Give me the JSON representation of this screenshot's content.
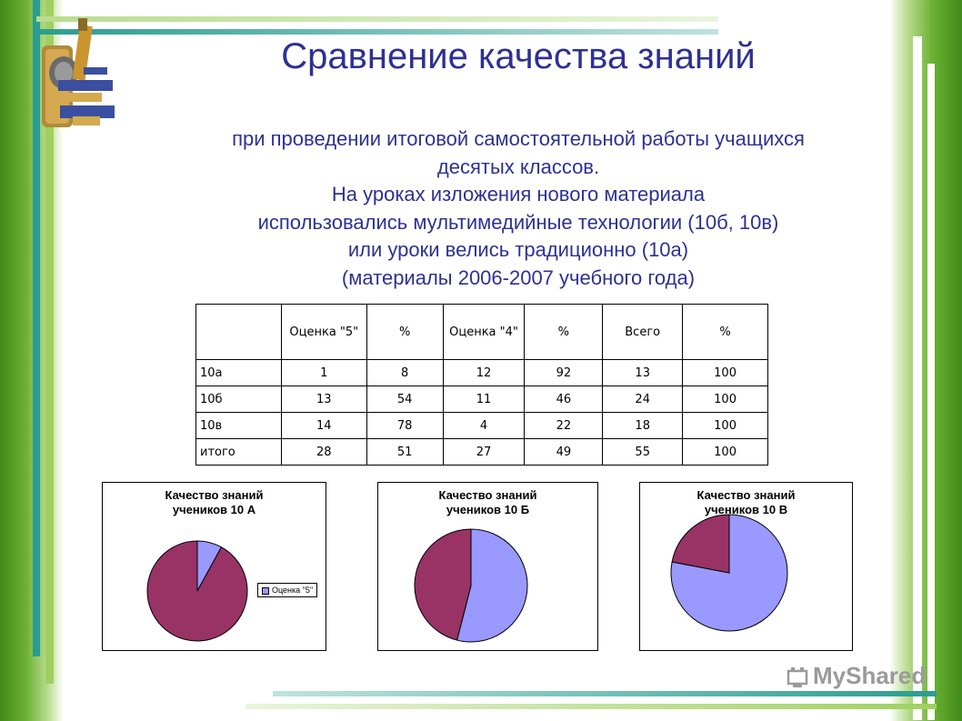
{
  "title": "Сравнение качества знаний",
  "subtitle_lines": [
    "при проведении итоговой самостоятельной работы учащихся",
    "десятых классов.",
    "На уроках изложения нового материала",
    "использовались мультимедийные технологии (10б, 10в)",
    "или уроки велись традиционно (10а)",
    "(материалы 2006-2007 учебного года)"
  ],
  "table": {
    "headers": [
      "",
      "Оценка \"5\"",
      "%",
      "Оценка \"4\"",
      "%",
      "Всего",
      "%"
    ],
    "rows": [
      [
        "10а",
        "1",
        "8",
        "12",
        "92",
        "13",
        "100"
      ],
      [
        "10б",
        "13",
        "54",
        "11",
        "46",
        "24",
        "100"
      ],
      [
        "10в",
        "14",
        "78",
        "4",
        "22",
        "18",
        "100"
      ],
      [
        "итого",
        "28",
        "51",
        "27",
        "49",
        "55",
        "100"
      ]
    ]
  },
  "chart_data": [
    {
      "type": "pie",
      "title": "Качество знаний учеников 10 А",
      "title_lines": [
        "Качество знаний",
        "учеников 10 А"
      ],
      "series": [
        {
          "name": "Оценка \"5\"",
          "value": 8,
          "color": "#9999ff"
        },
        {
          "value": 92,
          "color": "#993366"
        }
      ],
      "legend": {
        "visible": true,
        "placement": "right",
        "entries": [
          "Оценка \"5\""
        ]
      }
    },
    {
      "type": "pie",
      "title": "Качество знаний учеников 10 Б",
      "title_lines": [
        "Качество знаний",
        "учеников 10 Б"
      ],
      "series": [
        {
          "value": 54,
          "color": "#9999ff"
        },
        {
          "value": 46,
          "color": "#993366"
        }
      ],
      "legend": {
        "visible": false
      }
    },
    {
      "type": "pie",
      "title": "Качество знаний учеников 10 В",
      "title_lines": [
        "Качество знаний",
        "учеников 10 В"
      ],
      "series": [
        {
          "value": 78,
          "color": "#9999ff"
        },
        {
          "value": 22,
          "color": "#993366"
        }
      ],
      "legend": {
        "visible": false
      }
    }
  ],
  "watermark": "MyShared",
  "colors": {
    "title_text": "#2e3192",
    "green_dark": "#3f8a1a",
    "green_light": "#9fd060",
    "teal_bar": "#2a9d8f"
  },
  "icons": [
    "microscope-icon",
    "myshared-logo-icon"
  ]
}
